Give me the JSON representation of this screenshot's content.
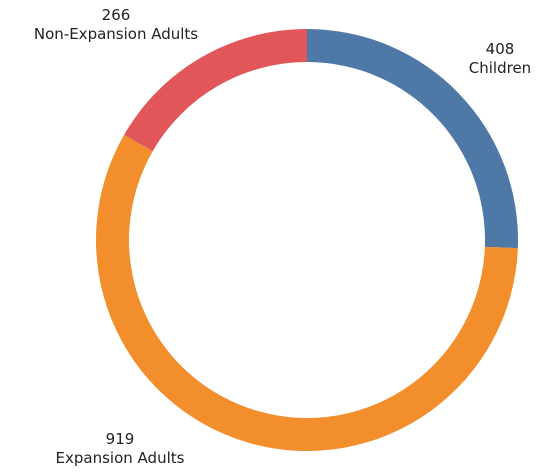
{
  "chart_data": {
    "type": "pie",
    "style": "donut",
    "grid": false,
    "legend": "none",
    "slices": [
      {
        "label": "Children",
        "value": 408,
        "value_label": "408",
        "color": "#4e79a7"
      },
      {
        "label": "Expansion Adults",
        "value": 919,
        "value_label": "919",
        "color": "#f28e2b"
      },
      {
        "label": "Non-Expansion Adults",
        "value": 266,
        "value_label": "266",
        "color": "#e15759"
      }
    ]
  }
}
